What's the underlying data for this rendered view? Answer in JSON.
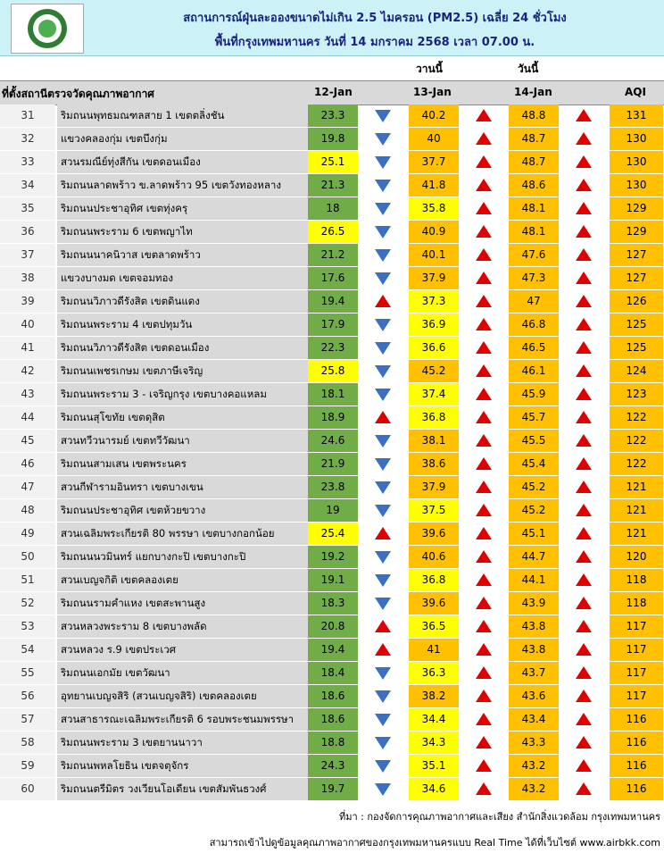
{
  "header": {
    "title": "สถานการณ์ฝุ่นละอองขนาดไม่เกิน 2.5 ไมครอน (PM2.5) เฉลี่ย 24 ชั่วโมง",
    "subtitle": "พื้นที่กรุงเทพมหานคร วันที่ 14 มกราคม 2568 เวลา 07.00 น.",
    "day_labels": [
      "วานนี้",
      "วันนี้"
    ]
  },
  "columns": {
    "location": "ที่ตั้งสถานีตรวจวัดคุณภาพอากาศ",
    "dates": [
      "12-Jan",
      "13-Jan",
      "14-Jan"
    ],
    "aqi": "AQI"
  },
  "rows": [
    {
      "no": "31",
      "location": "ริมถนนพุทธมณฑลสาย 1 เขตตลิ่งชัน",
      "values": [
        23.3,
        40.2,
        48.8
      ],
      "aqi": 131,
      "arrows": [
        "down",
        "up",
        "up"
      ],
      "colors": [
        "green",
        "orange",
        "orange"
      ]
    },
    {
      "no": "32",
      "location": "แขวงคลองกุ่ม เขตบึงกุ่ม",
      "values": [
        19.8,
        40,
        48.7
      ],
      "aqi": 130,
      "arrows": [
        "down",
        "up",
        "up"
      ],
      "colors": [
        "green",
        "orange",
        "orange"
      ]
    },
    {
      "no": "33",
      "location": "สวนรมณีย์ทุ่งสีกัน เขตดอนเมือง",
      "values": [
        25.1,
        37.7,
        48.7
      ],
      "aqi": 130,
      "arrows": [
        "down",
        "up",
        "up"
      ],
      "colors": [
        "yellow",
        "orange",
        "orange"
      ]
    },
    {
      "no": "34",
      "location": "ริมถนนลาดพร้าว ข.ลาดพร้าว 95 เขตวังทองหลาง",
      "values": [
        21.3,
        41.8,
        48.6
      ],
      "aqi": 130,
      "arrows": [
        "down",
        "up",
        "up"
      ],
      "colors": [
        "green",
        "orange",
        "orange"
      ]
    },
    {
      "no": "35",
      "location": "ริมถนนประชาอุทิศ เขตทุ่งครุ",
      "values": [
        18,
        35.8,
        48.1
      ],
      "aqi": 129,
      "arrows": [
        "down",
        "up",
        "up"
      ],
      "colors": [
        "green",
        "yellow",
        "orange"
      ]
    },
    {
      "no": "36",
      "location": "ริมถนนพระราม 6 เขตพญาไท",
      "values": [
        26.5,
        40.9,
        48.1
      ],
      "aqi": 129,
      "arrows": [
        "down",
        "up",
        "up"
      ],
      "colors": [
        "yellow",
        "orange",
        "orange"
      ]
    },
    {
      "no": "37",
      "location": "ริมถนนนาคนิวาส เขตลาดพร้าว",
      "values": [
        21.2,
        40.1,
        47.6
      ],
      "aqi": 127,
      "arrows": [
        "down",
        "up",
        "up"
      ],
      "colors": [
        "green",
        "orange",
        "orange"
      ]
    },
    {
      "no": "38",
      "location": "แขวงบางมด เขตจอมทอง",
      "values": [
        17.6,
        37.9,
        47.3
      ],
      "aqi": 127,
      "arrows": [
        "down",
        "up",
        "up"
      ],
      "colors": [
        "green",
        "orange",
        "orange"
      ]
    },
    {
      "no": "39",
      "location": "ริมถนนวิภาวดีรังสิต เขตดินแดง",
      "values": [
        19.4,
        37.3,
        47
      ],
      "aqi": 126,
      "arrows": [
        "up",
        "up",
        "up"
      ],
      "colors": [
        "green",
        "yellow",
        "orange"
      ]
    },
    {
      "no": "40",
      "location": "ริมถนนพระราม 4 เขตปทุมวัน",
      "values": [
        17.9,
        36.9,
        46.8
      ],
      "aqi": 125,
      "arrows": [
        "down",
        "up",
        "up"
      ],
      "colors": [
        "green",
        "yellow",
        "orange"
      ]
    },
    {
      "no": "41",
      "location": "ริมถนนวิภาวดีรังสิต เขตดอนเมือง",
      "values": [
        22.3,
        36.6,
        46.5
      ],
      "aqi": 125,
      "arrows": [
        "down",
        "up",
        "up"
      ],
      "colors": [
        "green",
        "yellow",
        "orange"
      ]
    },
    {
      "no": "42",
      "location": "ริมถนนเพชรเกษม เขตภาษีเจริญ",
      "values": [
        25.8,
        45.2,
        46.1
      ],
      "aqi": 124,
      "arrows": [
        "down",
        "up",
        "up"
      ],
      "colors": [
        "yellow",
        "orange",
        "orange"
      ]
    },
    {
      "no": "43",
      "location": "ริมถนนพระราม 3 - เจริญกรุง เขตบางคอแหลม",
      "values": [
        18.1,
        37.4,
        45.9
      ],
      "aqi": 123,
      "arrows": [
        "down",
        "up",
        "up"
      ],
      "colors": [
        "green",
        "yellow",
        "orange"
      ]
    },
    {
      "no": "44",
      "location": "ริมถนนสุโขทัย เขตดุสิต",
      "values": [
        18.9,
        36.8,
        45.7
      ],
      "aqi": 122,
      "arrows": [
        "up",
        "up",
        "up"
      ],
      "colors": [
        "green",
        "yellow",
        "orange"
      ]
    },
    {
      "no": "45",
      "location": "สวนทวีวนารมย์ เขตทวีวัฒนา",
      "values": [
        24.6,
        38.1,
        45.5
      ],
      "aqi": 122,
      "arrows": [
        "down",
        "up",
        "up"
      ],
      "colors": [
        "green",
        "orange",
        "orange"
      ]
    },
    {
      "no": "46",
      "location": "ริมถนนสามเสน เขตพระนคร",
      "values": [
        21.9,
        38.6,
        45.4
      ],
      "aqi": 122,
      "arrows": [
        "down",
        "up",
        "up"
      ],
      "colors": [
        "green",
        "orange",
        "orange"
      ]
    },
    {
      "no": "47",
      "location": "สวนกีฬารามอินทรา เขตบางเขน",
      "values": [
        23.8,
        37.9,
        45.2
      ],
      "aqi": 121,
      "arrows": [
        "down",
        "up",
        "up"
      ],
      "colors": [
        "green",
        "orange",
        "orange"
      ]
    },
    {
      "no": "48",
      "location": "ริมถนนประชาอุทิศ เขตห้วยขวาง",
      "values": [
        19,
        37.5,
        45.2
      ],
      "aqi": 121,
      "arrows": [
        "down",
        "up",
        "up"
      ],
      "colors": [
        "green",
        "yellow",
        "orange"
      ]
    },
    {
      "no": "49",
      "location": "สวนเฉลิมพระเกียรติ 80 พรรษา  เขตบางกอกน้อย",
      "values": [
        25.4,
        39.6,
        45.1
      ],
      "aqi": 121,
      "arrows": [
        "up",
        "up",
        "up"
      ],
      "colors": [
        "yellow",
        "orange",
        "orange"
      ]
    },
    {
      "no": "50",
      "location": "ริมถนนนวมินทร์ แยกบางกะปิ เขตบางกะปิ",
      "values": [
        19.2,
        40.6,
        44.7
      ],
      "aqi": 120,
      "arrows": [
        "down",
        "up",
        "up"
      ],
      "colors": [
        "green",
        "orange",
        "orange"
      ]
    },
    {
      "no": "51",
      "location": "สวนเบญจกิติ  เขตคลองเตย",
      "values": [
        19.1,
        36.8,
        44.1
      ],
      "aqi": 118,
      "arrows": [
        "down",
        "up",
        "up"
      ],
      "colors": [
        "green",
        "yellow",
        "orange"
      ]
    },
    {
      "no": "52",
      "location": "ริมถนนรามคำแหง เขตสะพานสูง",
      "values": [
        18.3,
        39.6,
        43.9
      ],
      "aqi": 118,
      "arrows": [
        "down",
        "up",
        "up"
      ],
      "colors": [
        "green",
        "orange",
        "orange"
      ]
    },
    {
      "no": "53",
      "location": "สวนหลวงพระราม 8 เขตบางพลัด",
      "values": [
        20.8,
        36.5,
        43.8
      ],
      "aqi": 117,
      "arrows": [
        "up",
        "up",
        "up"
      ],
      "colors": [
        "green",
        "yellow",
        "orange"
      ]
    },
    {
      "no": "54",
      "location": "สวนหลวง ร.9 เขตประเวศ",
      "values": [
        19.4,
        41,
        43.8
      ],
      "aqi": 117,
      "arrows": [
        "up",
        "up",
        "up"
      ],
      "colors": [
        "green",
        "orange",
        "orange"
      ]
    },
    {
      "no": "55",
      "location": "ริมถนนเอกมัย เขตวัฒนา",
      "values": [
        18.4,
        36.3,
        43.7
      ],
      "aqi": 117,
      "arrows": [
        "down",
        "up",
        "up"
      ],
      "colors": [
        "green",
        "yellow",
        "orange"
      ]
    },
    {
      "no": "56",
      "location": "อุทยานเบญจสิริ (สวนเบญจสิริ) เขตคลองเตย",
      "values": [
        18.6,
        38.2,
        43.6
      ],
      "aqi": 117,
      "arrows": [
        "down",
        "up",
        "up"
      ],
      "colors": [
        "green",
        "orange",
        "orange"
      ]
    },
    {
      "no": "57",
      "location": "สวนสาธารณะเฉลิมพระเกียรติ 6 รอบพระชนมพรรษา",
      "values": [
        18.6,
        34.4,
        43.4
      ],
      "aqi": 116,
      "arrows": [
        "down",
        "up",
        "up"
      ],
      "colors": [
        "green",
        "yellow",
        "orange"
      ]
    },
    {
      "no": "58",
      "location": "ริมถนนพระราม 3 เขตยานนาวา",
      "values": [
        18.8,
        34.3,
        43.3
      ],
      "aqi": 116,
      "arrows": [
        "down",
        "up",
        "up"
      ],
      "colors": [
        "green",
        "yellow",
        "orange"
      ]
    },
    {
      "no": "59",
      "location": "ริมถนนพหลโยธิน เขตจตุจักร",
      "values": [
        24.3,
        35.1,
        43.2
      ],
      "aqi": 116,
      "arrows": [
        "down",
        "up",
        "up"
      ],
      "colors": [
        "green",
        "yellow",
        "orange"
      ]
    },
    {
      "no": "60",
      "location": "ริมถนนตรีมิตร วงเวียนโอเดียน เขตสัมพันธวงศ์",
      "values": [
        19.7,
        34.6,
        43.2
      ],
      "aqi": 116,
      "arrows": [
        "down",
        "up",
        "up"
      ],
      "colors": [
        "green",
        "yellow",
        "orange"
      ]
    }
  ],
  "footer": {
    "source": "ที่มา : กองจัดการคุณภาพอากาศและเสียง สำนักสิ่งแวดล้อม กรุงเทพมหานคร",
    "realtime": "สามารถเข้าไปดูข้อมูลคุณภาพอากาศของกรุงเทพมหานครแบบ Real Time ได้ที่เว็บไซต์ www.airbkk.com"
  }
}
